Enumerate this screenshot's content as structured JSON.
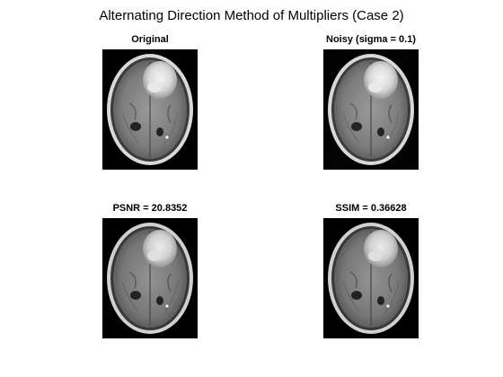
{
  "figure": {
    "title": "Alternating Direction Method of Multipliers (Case 2)"
  },
  "panels": [
    {
      "title": "Original"
    },
    {
      "title": "Noisy (sigma = 0.1)"
    },
    {
      "title": "PSNR = 20.8352"
    },
    {
      "title": "SSIM = 0.36628"
    }
  ],
  "image_content": "axial brain MRI slice with bright tumor region",
  "colors": {
    "background": "#ffffff",
    "image_background": "#000000"
  }
}
